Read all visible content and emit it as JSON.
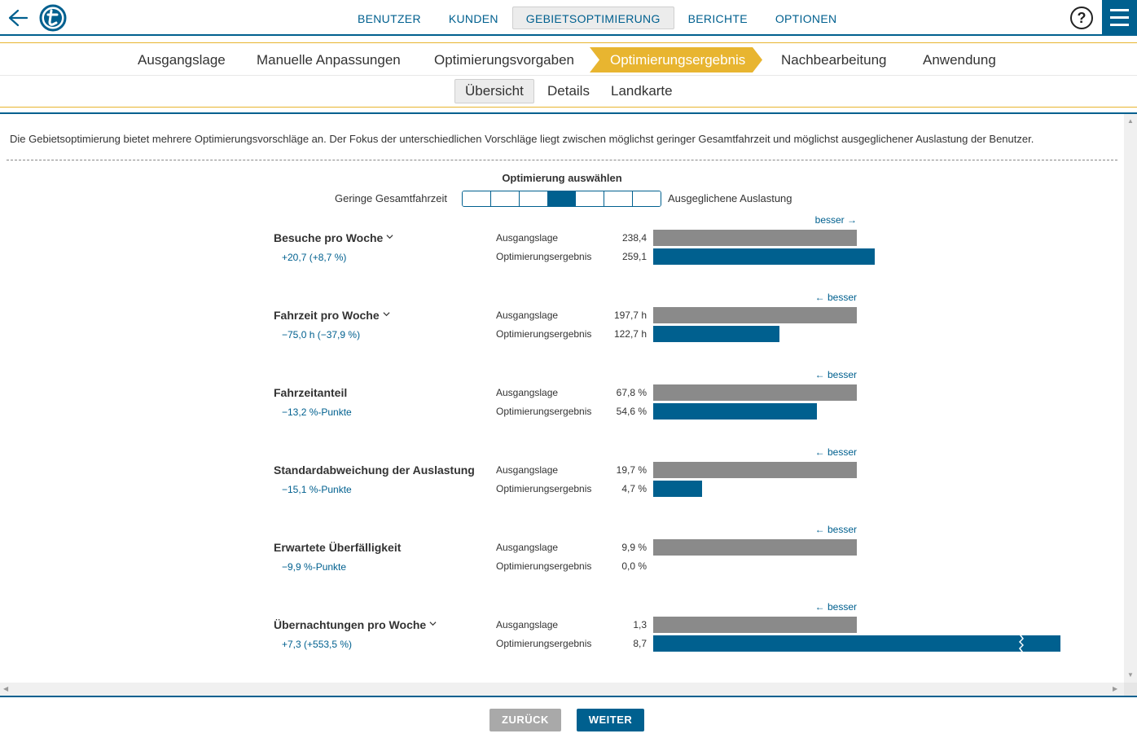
{
  "nav": {
    "items": [
      "BENUTZER",
      "KUNDEN",
      "GEBIETSOPTIMIERUNG",
      "BERICHTE",
      "OPTIONEN"
    ],
    "active": "GEBIETSOPTIMIERUNG",
    "help": "?"
  },
  "steps": [
    "Ausgangslage",
    "Manuelle Anpassungen",
    "Optimierungsvorgaben",
    "Optimierungsergebnis",
    "Nachbearbeitung",
    "Anwendung"
  ],
  "active_step": "Optimierungsergebnis",
  "subtabs": [
    "Übersicht",
    "Details",
    "Landkarte"
  ],
  "active_subtab": "Übersicht",
  "intro": "Die Gebietsoptimierung bietet mehrere Optimierungsvorschläge an. Der Fokus der unterschiedlichen Vorschläge liegt zwischen möglichst geringer Gesamtfahrzeit und möglichst ausgeglichener Auslastung der Benutzer.",
  "selector": {
    "title": "Optimierung auswählen",
    "left_label": "Geringe Gesamtfahrzeit",
    "right_label": "Ausgeglichene Auslastung",
    "segments": 7,
    "selected_index": 3
  },
  "row_labels": {
    "baseline": "Ausgangslage",
    "result": "Optimierungsergebnis"
  },
  "metrics": [
    {
      "name": "Besuche pro Woche",
      "has_dropdown": true,
      "delta": "+20,7 (+8,7 %)",
      "better": "besser →",
      "baseline": "238,4",
      "result": "259,1",
      "baseline_value": 238.4,
      "result_value": 259.1,
      "scale_max": 238.4
    },
    {
      "name": "Fahrzeit pro Woche",
      "has_dropdown": true,
      "delta": "−75,0 h (−37,9 %)",
      "better": "← besser",
      "baseline": "197,7 h",
      "result": "122,7 h",
      "baseline_value": 197.7,
      "result_value": 122.7,
      "scale_max": 197.7
    },
    {
      "name": "Fahrzeitanteil",
      "has_dropdown": false,
      "delta": "−13,2 %-Punkte",
      "better": "← besser",
      "baseline": "67,8 %",
      "result": "54,6 %",
      "baseline_value": 67.8,
      "result_value": 54.6,
      "scale_max": 67.8
    },
    {
      "name": "Standardabweichung der Auslastung",
      "has_dropdown": false,
      "delta": "−15,1 %-Punkte",
      "better": "← besser",
      "baseline": "19,7 %",
      "result": "4,7 %",
      "baseline_value": 19.7,
      "result_value": 4.7,
      "scale_max": 19.7
    },
    {
      "name": "Erwartete Überfälligkeit",
      "has_dropdown": false,
      "delta": "−9,9 %-Punkte",
      "better": "← besser",
      "baseline": "9,9 %",
      "result": "0,0 %",
      "baseline_value": 9.9,
      "result_value": 0.0,
      "scale_max": 9.9
    },
    {
      "name": "Übernachtungen pro Woche",
      "has_dropdown": true,
      "delta": "+7,3 (+553,5 %)",
      "better": "← besser",
      "baseline": "1,3",
      "result": "8,7",
      "baseline_value": 1.3,
      "result_value": 8.7,
      "scale_max": 1.3,
      "truncated": true
    }
  ],
  "footer": {
    "back": "ZURÜCK",
    "next": "WEITER"
  },
  "colors": {
    "primary": "#00608f",
    "accent": "#e8b530",
    "baseline_bar": "#8a8a8a"
  }
}
